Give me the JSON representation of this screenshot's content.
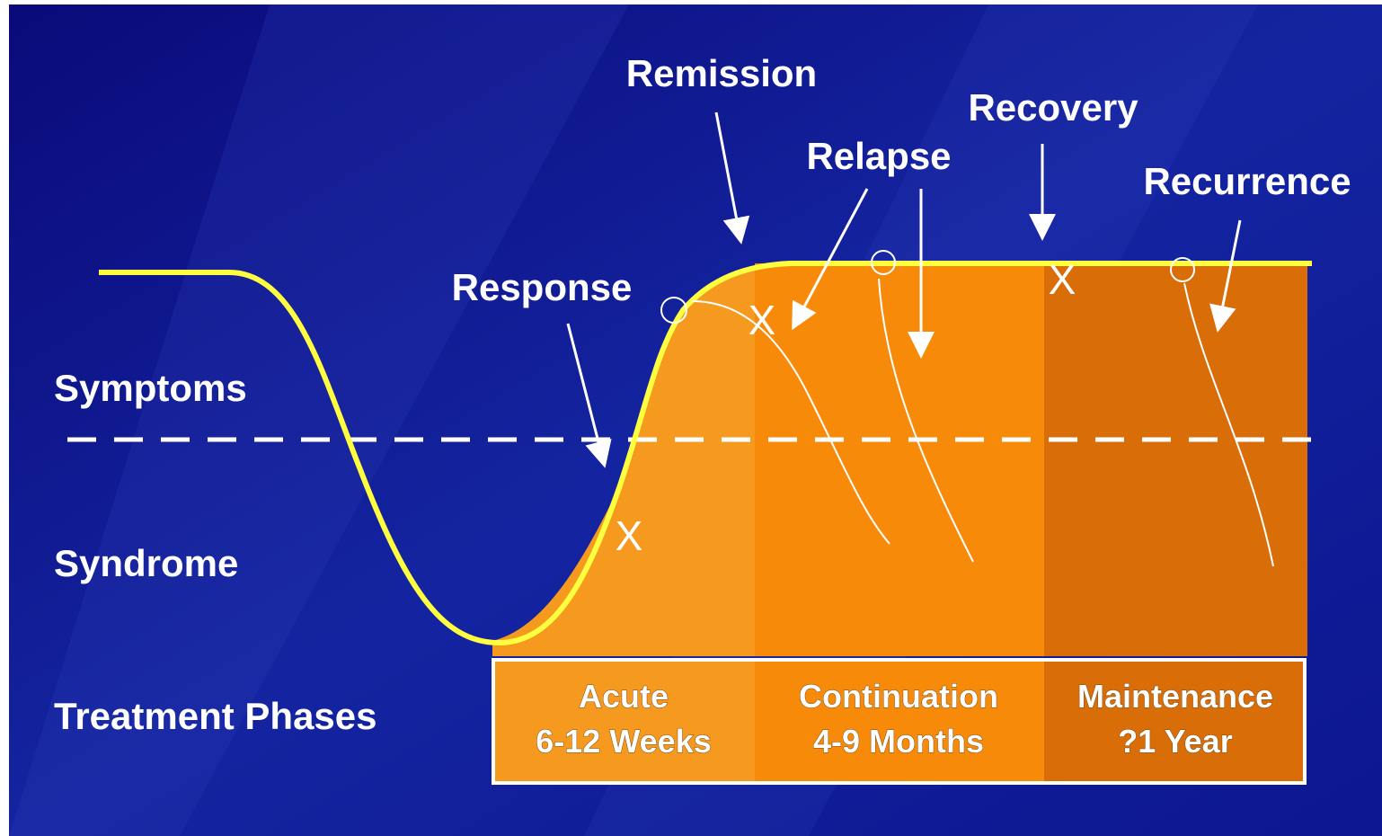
{
  "labels": {
    "remission": "Remission",
    "recovery": "Recovery",
    "relapse": "Relapse",
    "recurrence": "Recurrence",
    "response": "Response"
  },
  "rows": {
    "symptoms": "Symptoms",
    "syndrome": "Syndrome",
    "treatment_phases": "Treatment Phases"
  },
  "phases": [
    {
      "name": "Acute",
      "duration": "6-12 Weeks"
    },
    {
      "name": "Continuation",
      "duration": "4-9 Months"
    },
    {
      "name": "Maintenance",
      "duration": "?1 Year"
    }
  ]
}
